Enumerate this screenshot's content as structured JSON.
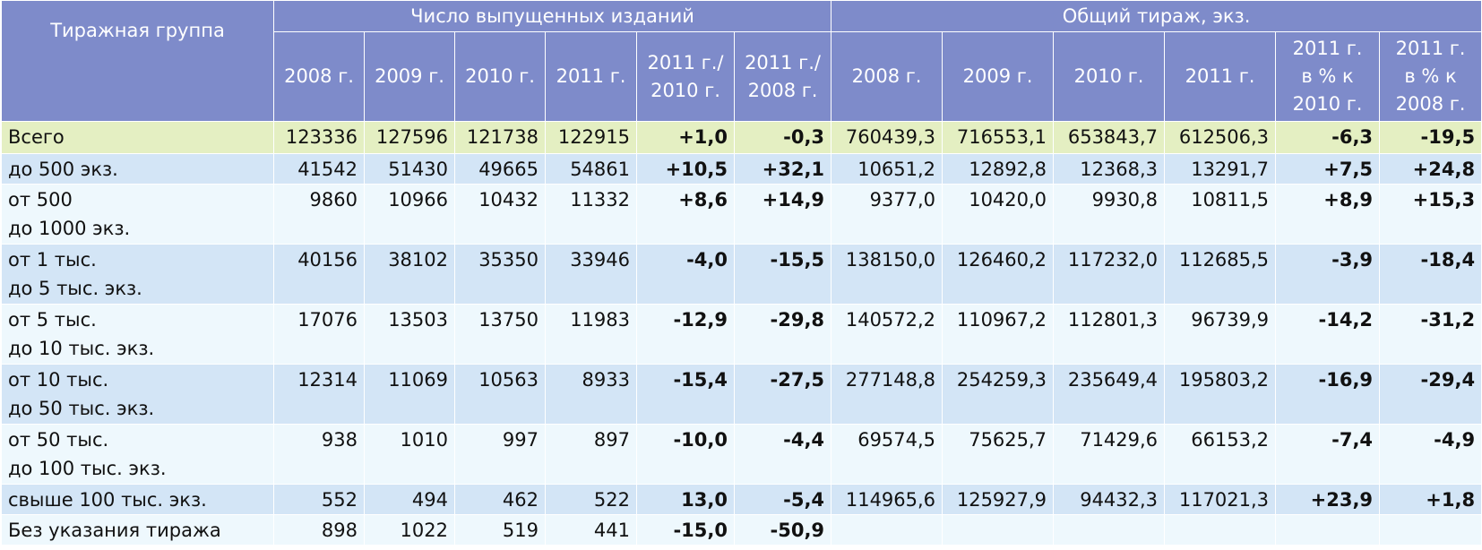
{
  "header": {
    "group_label": "Тиражная группа",
    "group1": "Число выпущенных изданий",
    "group2": "Общий тираж, экз.",
    "columns": [
      "2008 г.",
      "2009 г.",
      "2010 г.",
      "2011 г.",
      "2011 г./\n2010 г.",
      "2011 г./\n2008 г.",
      "2008 г.",
      "2009 г.",
      "2010 г.",
      "2011 г.",
      "2011 г.\nв % к\n2010 г.",
      "2011 г.\nв % к\n2008 г."
    ]
  },
  "table": {
    "rows": [
      [
        "Всего",
        "123336",
        "127596",
        "121738",
        "122915",
        "+1,0",
        "-0,3",
        "760439,3",
        "716553,1",
        "653843,7",
        "612506,3",
        "-6,3",
        "-19,5"
      ],
      [
        "до 500 экз.",
        "41542",
        "51430",
        "49665",
        "54861",
        "+10,5",
        "+32,1",
        "10651,2",
        "12892,8",
        "12368,3",
        "13291,7",
        "+7,5",
        "+24,8"
      ],
      [
        "от 500\nдо 1000 экз.",
        "9860",
        "10966",
        "10432",
        "11332",
        "+8,6",
        "+14,9",
        "9377,0",
        "10420,0",
        "9930,8",
        "10811,5",
        "+8,9",
        "+15,3"
      ],
      [
        "от 1 тыс.\nдо 5 тыс. экз.",
        "40156",
        "38102",
        "35350",
        "33946",
        "-4,0",
        "-15,5",
        "138150,0",
        "126460,2",
        "117232,0",
        "112685,5",
        "-3,9",
        "-18,4"
      ],
      [
        "от 5 тыс.\nдо 10 тыс. экз.",
        "17076",
        "13503",
        "13750",
        "11983",
        "-12,9",
        "-29,8",
        "140572,2",
        "110967,2",
        "112801,3",
        "96739,9",
        "-14,2",
        "-31,2"
      ],
      [
        "от 10 тыс.\nдо 50 тыс. экз.",
        "12314",
        "11069",
        "10563",
        "8933",
        "-15,4",
        "-27,5",
        "277148,8",
        "254259,3",
        "235649,4",
        "195803,2",
        "-16,9",
        "-29,4"
      ],
      [
        "от 50 тыс.\nдо 100 тыс. экз.",
        "938",
        "1010",
        "997",
        "897",
        "-10,0",
        "-4,4",
        "69574,5",
        "75625,7",
        "71429,6",
        "66153,2",
        "-7,4",
        "-4,9"
      ],
      [
        "свыше 100 тыс. экз.",
        "552",
        "494",
        "462",
        "522",
        "13,0",
        "-5,4",
        "114965,6",
        "125927,9",
        "94432,3",
        "117021,3",
        "+23,9",
        "+1,8"
      ],
      [
        "Без указания тиража",
        "898",
        "1022",
        "519",
        "441",
        "-15,0",
        "-50,9"
      ]
    ]
  }
}
